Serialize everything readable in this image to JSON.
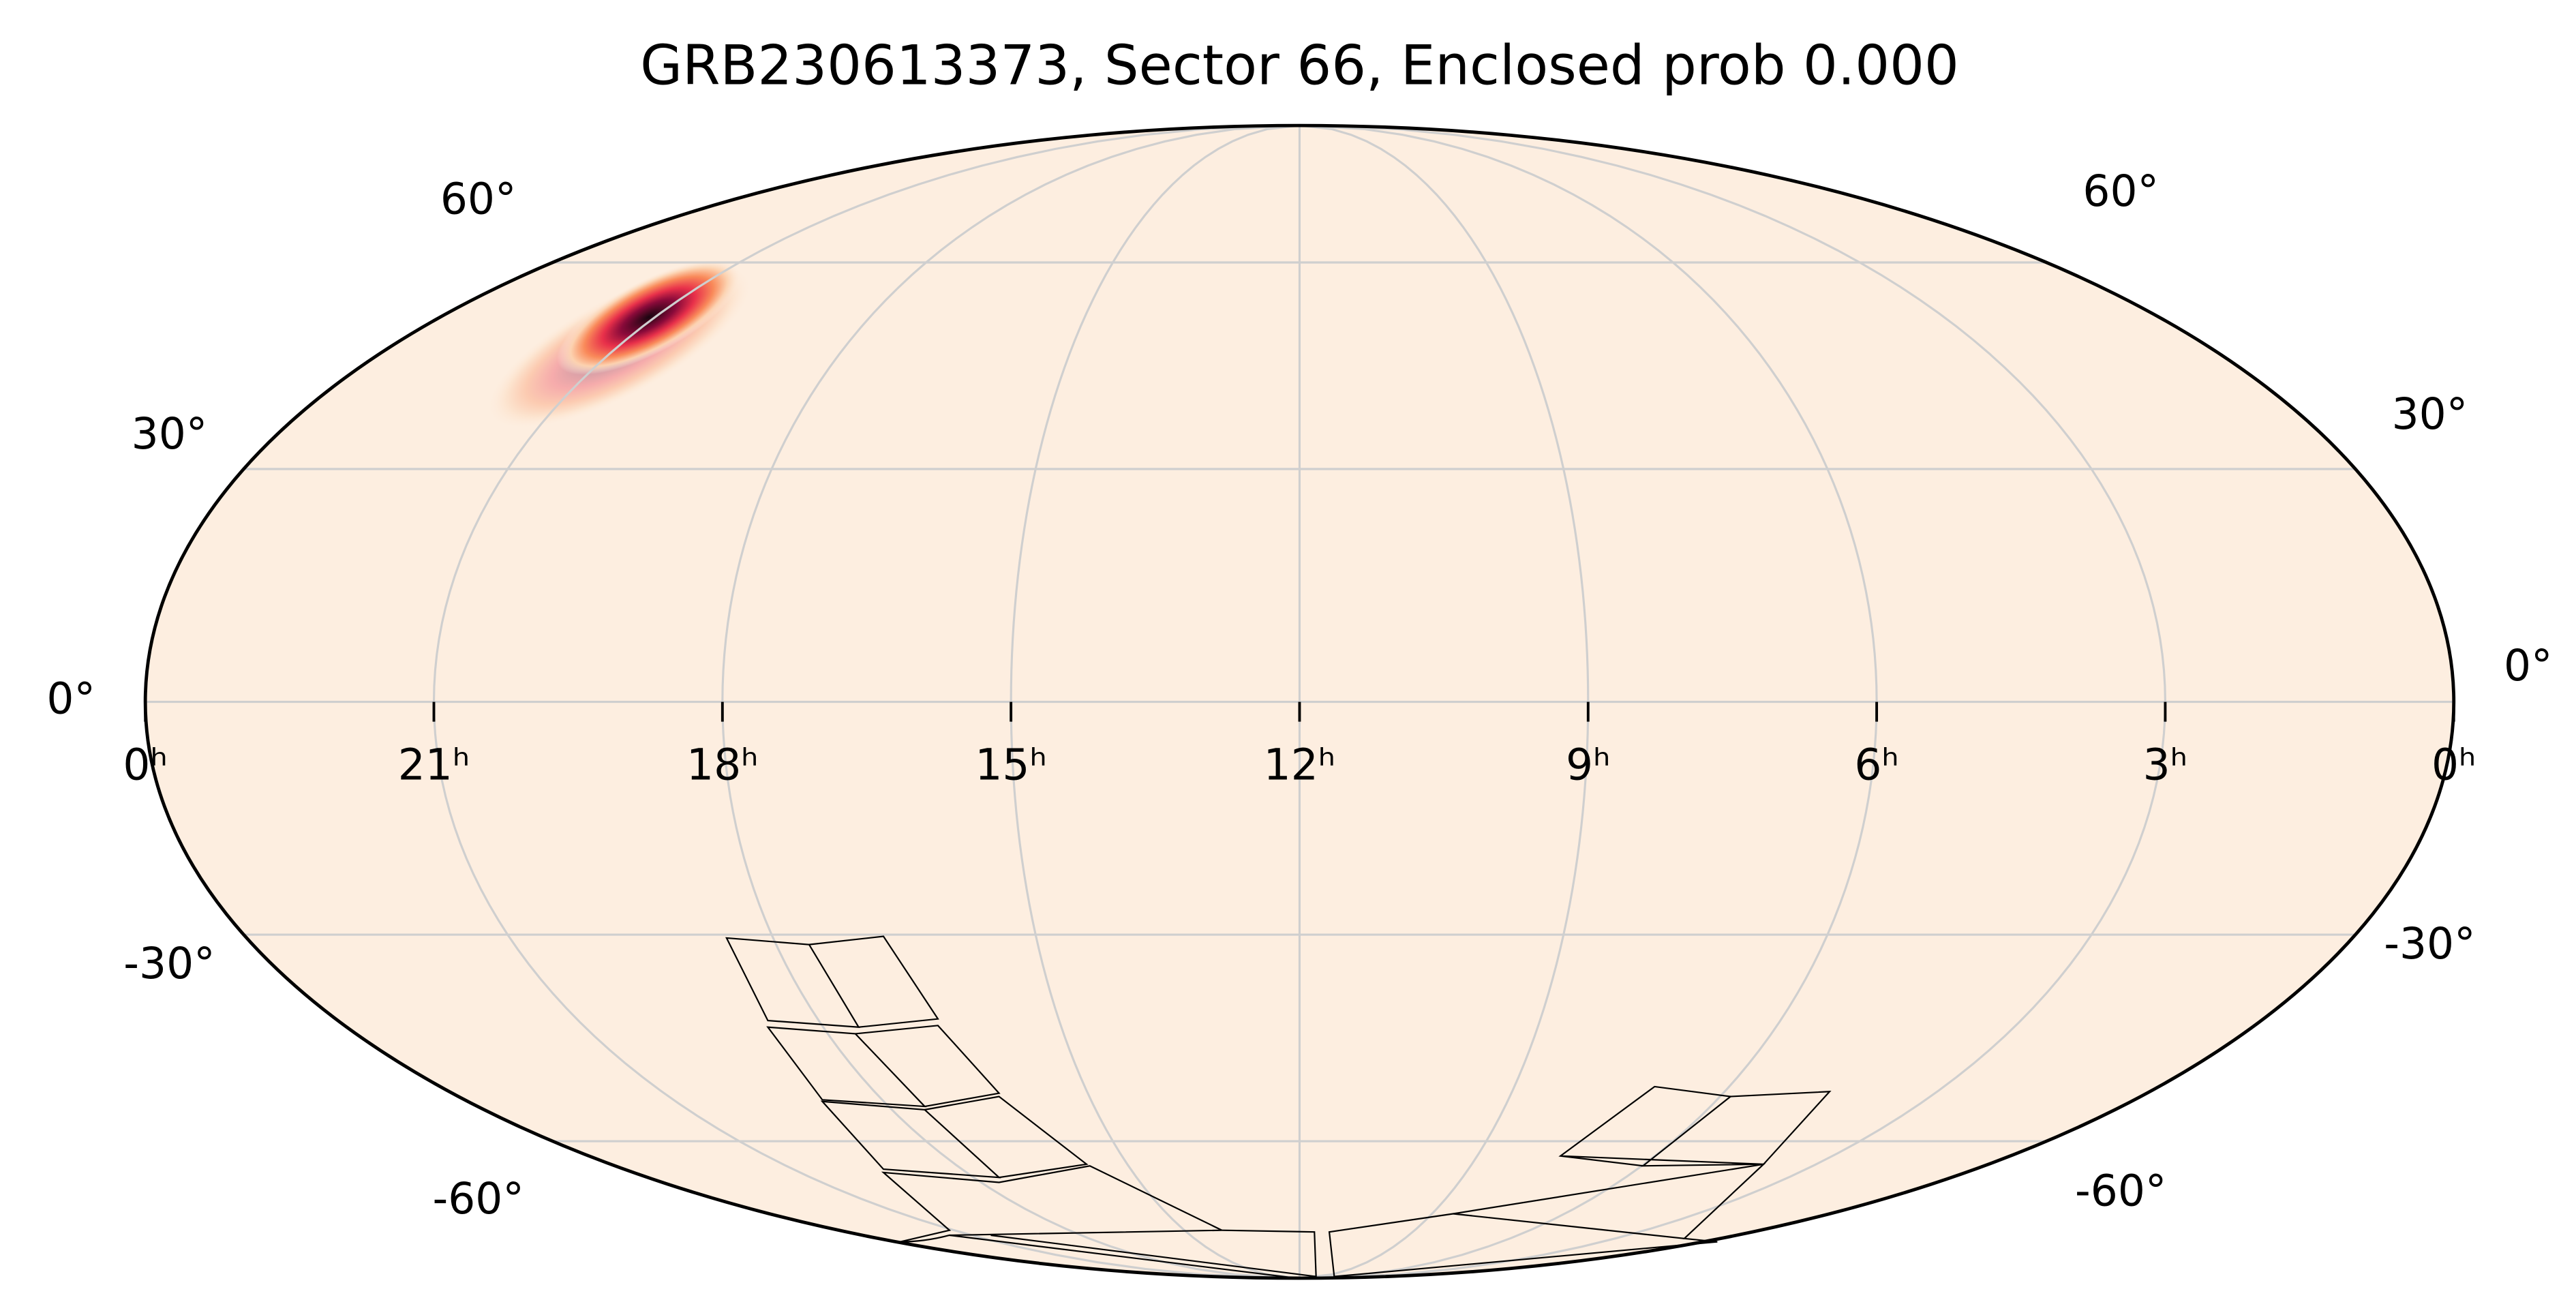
{
  "chart_data": {
    "type": "mollweide",
    "title": "GRB230613373, Sector 66, Enclosed prob 0.000",
    "xlim": [
      24,
      0
    ],
    "xticks": [
      {
        "value": 24,
        "label": "0ʰ"
      },
      {
        "value": 21,
        "label": "21ʰ"
      },
      {
        "value": 18,
        "label": "18ʰ"
      },
      {
        "value": 15,
        "label": "15ʰ"
      },
      {
        "value": 12,
        "label": "12ʰ"
      },
      {
        "value": 9,
        "label": "9ʰ"
      },
      {
        "value": 6,
        "label": "6ʰ"
      },
      {
        "value": 3,
        "label": "3ʰ"
      },
      {
        "value": 0,
        "label": "0ʰ"
      }
    ],
    "ylim": [
      -90,
      90
    ],
    "yticks": [
      {
        "value": 60,
        "label": "60°"
      },
      {
        "value": 30,
        "label": "30°"
      },
      {
        "value": 0,
        "label": "0°"
      },
      {
        "value": -30,
        "label": "-30°"
      },
      {
        "value": -60,
        "label": "-60°"
      }
    ],
    "grid": true
  }
}
